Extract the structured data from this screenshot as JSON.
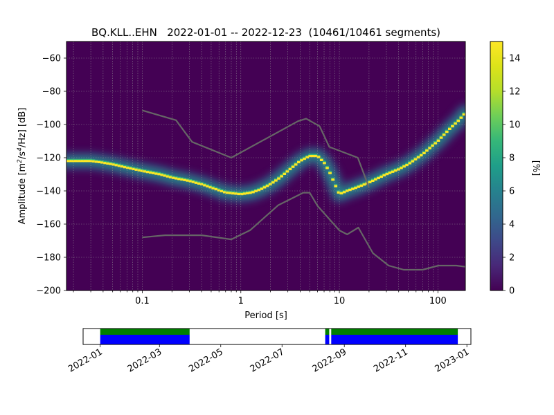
{
  "chart_data": [
    {
      "type": "heatmap",
      "title": "BQ.KLL..EHN   2022-01-01 -- 2022-12-23  (10461/10461 segments)",
      "xlabel": "Period [s]",
      "ylabel_main": "Amplitude [m",
      "ylabel_sup1": "2",
      "ylabel_mid": "/s",
      "ylabel_sup2": "4",
      "ylabel_tail": "/Hz] [dB]",
      "x_scale": "log",
      "xlim": [
        0.017,
        190
      ],
      "ylim": [
        -200,
        -50
      ],
      "x_ticks": [
        {
          "value": 0.1,
          "label": "0.1"
        },
        {
          "value": 1,
          "label": "1"
        },
        {
          "value": 10,
          "label": "10"
        },
        {
          "value": 100,
          "label": "100"
        }
      ],
      "y_ticks": [
        {
          "value": -60,
          "label": "−60"
        },
        {
          "value": -80,
          "label": "−80"
        },
        {
          "value": -100,
          "label": "−100"
        },
        {
          "value": -120,
          "label": "−120"
        },
        {
          "value": -140,
          "label": "−140"
        },
        {
          "value": -160,
          "label": "−160"
        },
        {
          "value": -180,
          "label": "−180"
        },
        {
          "value": -200,
          "label": "−200"
        }
      ],
      "grid": true,
      "colormap": "viridis",
      "colorbar": {
        "label": "[%]",
        "range": [
          0,
          15
        ],
        "ticks": [
          {
            "value": 0,
            "label": "0"
          },
          {
            "value": 2,
            "label": "2"
          },
          {
            "value": 4,
            "label": "4"
          },
          {
            "value": 6,
            "label": "6"
          },
          {
            "value": 8,
            "label": "8"
          },
          {
            "value": 10,
            "label": "10"
          },
          {
            "value": 12,
            "label": "12"
          },
          {
            "value": 14,
            "label": "14"
          }
        ]
      },
      "mode_curve": {
        "period": [
          0.017,
          0.02,
          0.025,
          0.03,
          0.04,
          0.05,
          0.07,
          0.1,
          0.15,
          0.2,
          0.3,
          0.4,
          0.5,
          0.7,
          1.0,
          1.3,
          1.6,
          2.0,
          2.5,
          3.0,
          4.0,
          5.0,
          6.0,
          7.0,
          8.0,
          9.0,
          10.0,
          12.0,
          15.0,
          20.0,
          30.0,
          40.0,
          50.0,
          70.0,
          100.0,
          130.0,
          160.0,
          190.0
        ],
        "amplitude": [
          -122,
          -122,
          -122,
          -122,
          -123,
          -124,
          -126,
          -128,
          -130,
          -132,
          -134,
          -136,
          -138,
          -141,
          -142,
          -141,
          -139,
          -136,
          -132,
          -128,
          -122,
          -119,
          -119,
          -123,
          -129,
          -136,
          -142,
          -140,
          -138,
          -135,
          -130,
          -127,
          -124,
          -118,
          -110,
          -103,
          -98,
          -93
        ]
      },
      "noise_model_high": {
        "period": [
          0.1,
          0.22,
          0.32,
          0.8,
          3.8,
          4.6,
          6.3,
          7.9,
          15.4,
          20.0
        ],
        "amplitude": [
          -91.5,
          -97.4,
          -110.5,
          -120.0,
          -98.0,
          -96.5,
          -101.0,
          -113.5,
          -120.0,
          -138.0
        ]
      },
      "noise_model_low": {
        "period": [
          0.1,
          0.17,
          0.4,
          0.8,
          1.24,
          2.4,
          4.3,
          5.0,
          6.0,
          10.0,
          12.0,
          15.6,
          21.9,
          31.6,
          45.0,
          70.0,
          101.0,
          154.0,
          190.0
        ],
        "amplitude": [
          -168.0,
          -166.7,
          -166.7,
          -169.2,
          -163.7,
          -148.6,
          -141.1,
          -141.1,
          -149.0,
          -163.8,
          -166.2,
          -162.1,
          -177.5,
          -185.0,
          -187.5,
          -187.5,
          -185.0,
          -185.0,
          -185.7
        ]
      }
    },
    {
      "type": "timeline",
      "date_start": "2021-12-15",
      "date_end": "2023-01-05",
      "tick_labels": [
        {
          "date": "2022-01-01",
          "label": "2022-01"
        },
        {
          "date": "2022-03-01",
          "label": "2022-03"
        },
        {
          "date": "2022-05-01",
          "label": "2022-05"
        },
        {
          "date": "2022-07-01",
          "label": "2022-07"
        },
        {
          "date": "2022-09-01",
          "label": "2022-09"
        },
        {
          "date": "2022-11-01",
          "label": "2022-11"
        },
        {
          "date": "2023-01-01",
          "label": "2023-01"
        }
      ],
      "data_periods": [
        [
          "2022-01-01",
          "2022-03-31"
        ],
        [
          "2022-08-13",
          "2022-08-17"
        ],
        [
          "2022-08-19",
          "2022-12-23"
        ]
      ],
      "colors": {
        "top": "#008000",
        "bottom": "#0000ff"
      }
    }
  ],
  "colors": {
    "background_low": "#440154",
    "model_line": "#666666",
    "grid": "#9a9a9a"
  }
}
